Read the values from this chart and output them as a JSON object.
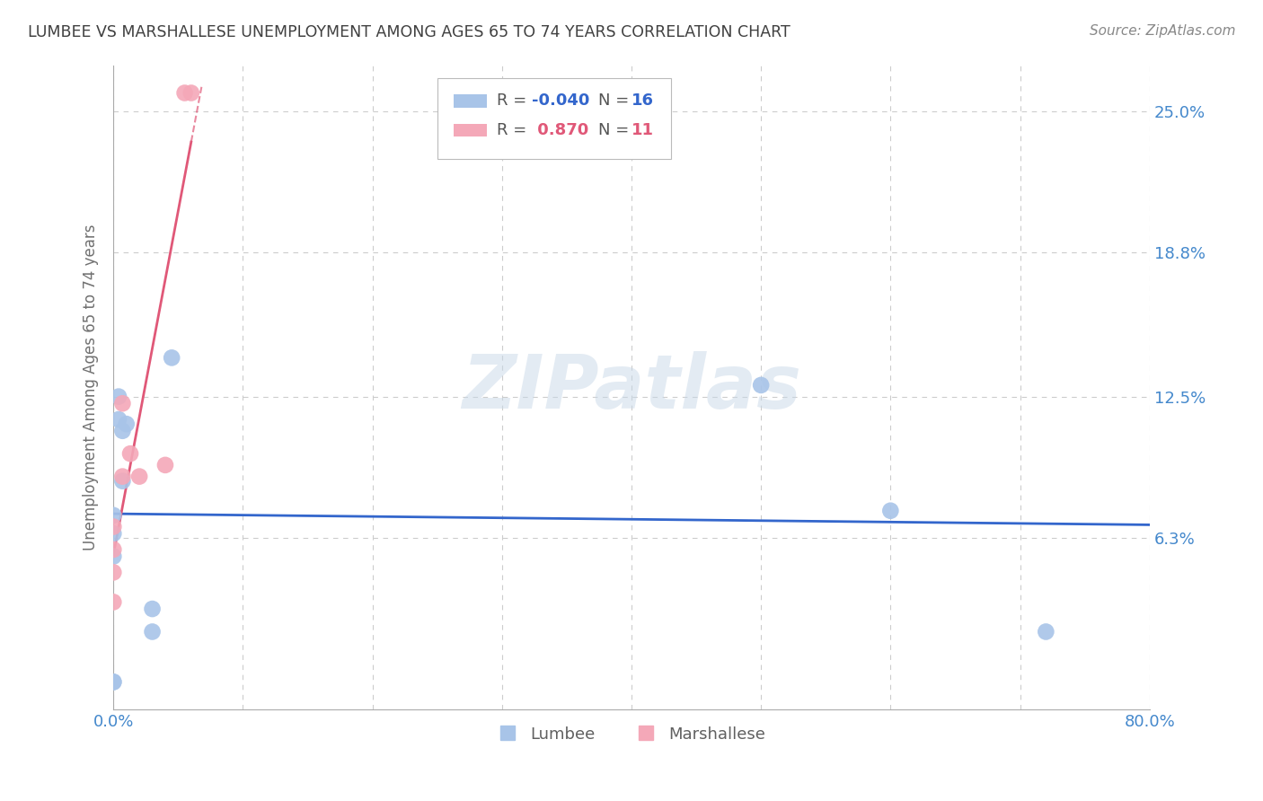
{
  "title": "LUMBEE VS MARSHALLESE UNEMPLOYMENT AMONG AGES 65 TO 74 YEARS CORRELATION CHART",
  "source": "Source: ZipAtlas.com",
  "ylabel": "Unemployment Among Ages 65 to 74 years",
  "xlim": [
    0.0,
    0.8
  ],
  "ylim": [
    -0.012,
    0.27
  ],
  "yticks": [
    0.063,
    0.125,
    0.188,
    0.25
  ],
  "ytick_labels": [
    "6.3%",
    "12.5%",
    "18.8%",
    "25.0%"
  ],
  "xticks": [
    0.0,
    0.1,
    0.2,
    0.3,
    0.4,
    0.5,
    0.6,
    0.7,
    0.8
  ],
  "xtick_labels": [
    "0.0%",
    "",
    "",
    "",
    "",
    "",
    "",
    "",
    "80.0%"
  ],
  "lumbee_color": "#a8c4e8",
  "marshallese_color": "#f4a8b8",
  "lumbee_line_color": "#3366cc",
  "marshallese_line_color": "#e05878",
  "lumbee_R": -0.04,
  "lumbee_N": 16,
  "marshallese_R": 0.87,
  "marshallese_N": 11,
  "lumbee_x": [
    0.0,
    0.0,
    0.0,
    0.0,
    0.0,
    0.004,
    0.004,
    0.007,
    0.007,
    0.01,
    0.03,
    0.03,
    0.045,
    0.5,
    0.6,
    0.72
  ],
  "lumbee_y": [
    0.055,
    0.065,
    0.073,
    0.0,
    0.0,
    0.115,
    0.125,
    0.11,
    0.088,
    0.113,
    0.022,
    0.032,
    0.142,
    0.13,
    0.075,
    0.022
  ],
  "marshallese_x": [
    0.0,
    0.0,
    0.0,
    0.0,
    0.007,
    0.007,
    0.013,
    0.02,
    0.04,
    0.055,
    0.06
  ],
  "marshallese_y": [
    0.058,
    0.068,
    0.048,
    0.035,
    0.09,
    0.122,
    0.1,
    0.09,
    0.095,
    0.258,
    0.258
  ],
  "watermark": "ZIPatlas",
  "background_color": "#ffffff",
  "grid_color": "#cccccc",
  "title_color": "#404040",
  "axis_label_color": "#707070",
  "tick_label_color_blue": "#4488cc",
  "source_color": "#888888"
}
